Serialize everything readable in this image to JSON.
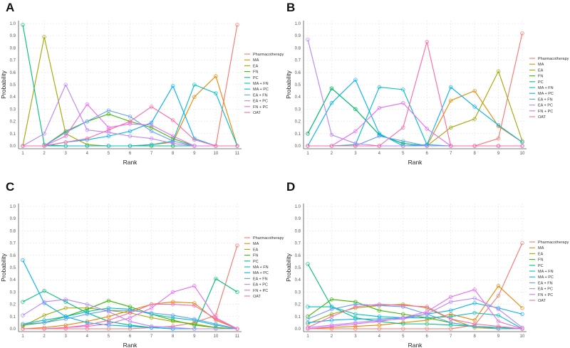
{
  "palette": {
    "Pharmacotherapy": "#F8766D",
    "MA": "#E58700",
    "EA": "#A3A500",
    "FN": "#39B600",
    "PC": "#00BF7D",
    "MA + FN": "#00BFC4",
    "MA + PC": "#00B0F6",
    "EA + FN": "#619CFF",
    "EA + PC": "#B983FF",
    "FN + PC": "#E76BF3",
    "OAT": "#FF67A4"
  },
  "chart_data": [
    {
      "panel": "A",
      "type": "line",
      "xlabel": "Rank",
      "ylabel": "Probability",
      "ylim": [
        0,
        1
      ],
      "yticks": [
        "0.0",
        "0.1",
        "0.2",
        "0.3",
        "0.4",
        "0.5",
        "0.6",
        "0.7",
        "0.8",
        "0.9",
        "1.0"
      ],
      "x": [
        1,
        2,
        3,
        4,
        5,
        6,
        7,
        8,
        9,
        10,
        11
      ],
      "grid": true,
      "legend_position": "right",
      "series": [
        {
          "name": "Pharmacotherapy",
          "values": [
            0,
            0,
            0,
            0,
            0,
            0,
            0,
            0,
            0,
            0,
            0.99
          ]
        },
        {
          "name": "MA",
          "values": [
            0,
            0,
            0,
            0,
            0,
            0,
            0.01,
            0.03,
            0.4,
            0.57,
            0
          ]
        },
        {
          "name": "EA",
          "values": [
            0,
            0.89,
            0.1,
            0.01,
            0,
            0,
            0,
            0,
            0,
            0,
            0
          ]
        },
        {
          "name": "FN",
          "values": [
            0,
            0,
            0.12,
            0.2,
            0.26,
            0.2,
            0.15,
            0.06,
            0,
            0,
            0
          ]
        },
        {
          "name": "PC",
          "values": [
            0.99,
            0.01,
            0,
            0,
            0,
            0,
            0,
            0,
            0,
            0,
            0
          ]
        },
        {
          "name": "MA + FN",
          "values": [
            0,
            0,
            0,
            0,
            0,
            0,
            0.01,
            0.04,
            0.5,
            0.43,
            0
          ]
        },
        {
          "name": "MA + PC",
          "values": [
            0,
            0,
            0.03,
            0.05,
            0.08,
            0.12,
            0.19,
            0.49,
            0.06,
            0,
            0
          ]
        },
        {
          "name": "EA + FN",
          "values": [
            0,
            0,
            0.11,
            0.2,
            0.29,
            0.24,
            0.12,
            0.04,
            0,
            0,
            0
          ]
        },
        {
          "name": "EA + PC",
          "values": [
            0,
            0.1,
            0.5,
            0.13,
            0.11,
            0.08,
            0.06,
            0.02,
            0,
            0,
            0
          ]
        },
        {
          "name": "FN + PC",
          "values": [
            0,
            0,
            0.08,
            0.34,
            0.15,
            0.18,
            0.17,
            0.08,
            0,
            0,
            0
          ]
        },
        {
          "name": "OAT",
          "values": [
            0,
            0,
            0.03,
            0.06,
            0.13,
            0.2,
            0.32,
            0.21,
            0.05,
            0,
            0
          ]
        }
      ]
    },
    {
      "panel": "B",
      "type": "line",
      "xlabel": "Rank",
      "ylabel": "Probability",
      "ylim": [
        0,
        1
      ],
      "yticks": [
        "0.0",
        "0.1",
        "0.2",
        "0.3",
        "0.4",
        "0.5",
        "0.6",
        "0.7",
        "0.8",
        "0.9",
        "1.0"
      ],
      "x": [
        1,
        2,
        3,
        4,
        5,
        6,
        7,
        8,
        9,
        10
      ],
      "grid": true,
      "legend_position": "right",
      "series": [
        {
          "name": "Pharmacotherapy",
          "values": [
            0,
            0,
            0,
            0,
            0,
            0,
            0,
            0,
            0.06,
            0.92
          ]
        },
        {
          "name": "MA",
          "values": [
            0,
            0,
            0,
            0,
            0,
            0,
            0.37,
            0.45,
            0.16,
            0.03
          ]
        },
        {
          "name": "EA",
          "values": [
            0,
            0,
            0,
            0,
            0,
            0,
            0.15,
            0.22,
            0.61,
            0.04
          ]
        },
        {
          "name": "FN",
          "values": [
            0.1,
            0.47,
            0.3,
            0.09,
            0.02,
            0,
            0,
            0,
            0,
            0
          ]
        },
        {
          "name": "PC",
          "values": [
            0.1,
            0.47,
            0.3,
            0.09,
            0.02,
            0,
            0,
            0,
            0,
            0
          ]
        },
        {
          "name": "MA + FN",
          "values": [
            0,
            0,
            0.01,
            0.48,
            0.46,
            0.01,
            0,
            0,
            0,
            0
          ]
        },
        {
          "name": "MA + PC",
          "values": [
            0,
            0.35,
            0.54,
            0.1,
            0,
            0.01,
            0.48,
            0.32,
            0.17,
            0.03
          ]
        },
        {
          "name": "EA + FN",
          "values": [
            0,
            0,
            0,
            0.08,
            0.04,
            0,
            0,
            0,
            0,
            0
          ]
        },
        {
          "name": "EA + PC",
          "values": [
            0.87,
            0.09,
            0.02,
            0,
            0,
            0,
            0,
            0,
            0,
            0
          ]
        },
        {
          "name": "FN + PC",
          "values": [
            0,
            0,
            0.12,
            0.31,
            0.35,
            0.14,
            0,
            0,
            0,
            0
          ]
        },
        {
          "name": "OAT",
          "values": [
            0,
            0,
            0,
            0,
            0.15,
            0.85,
            0,
            0,
            0,
            0
          ]
        }
      ]
    },
    {
      "panel": "C",
      "type": "line",
      "xlabel": "Rank",
      "ylabel": "Probability",
      "ylim": [
        0,
        1
      ],
      "yticks": [
        "0.0",
        "0.1",
        "0.2",
        "0.3",
        "0.4",
        "0.5",
        "0.6",
        "0.7",
        "0.8",
        "0.9",
        "1.0"
      ],
      "x": [
        1,
        2,
        3,
        4,
        5,
        6,
        7,
        8,
        9,
        10,
        11
      ],
      "grid": true,
      "legend_position": "right",
      "series": [
        {
          "name": "Pharmacotherapy",
          "values": [
            0,
            0,
            0,
            0,
            0,
            0,
            0.01,
            0.02,
            0.05,
            0.11,
            0.68
          ]
        },
        {
          "name": "MA",
          "values": [
            0,
            0.01,
            0.03,
            0.06,
            0.1,
            0.15,
            0.2,
            0.22,
            0.21,
            0.07,
            0
          ]
        },
        {
          "name": "EA",
          "values": [
            0.02,
            0.11,
            0.17,
            0.17,
            0.15,
            0.13,
            0.09,
            0.06,
            0.04,
            0.01,
            0
          ]
        },
        {
          "name": "FN",
          "values": [
            0.03,
            0.05,
            0.1,
            0.16,
            0.23,
            0.18,
            0.12,
            0.07,
            0.03,
            0.01,
            0
          ]
        },
        {
          "name": "PC",
          "values": [
            0.22,
            0.31,
            0.22,
            0.13,
            0.06,
            0.03,
            0.01,
            0,
            0,
            0.41,
            0.3
          ]
        },
        {
          "name": "MA + FN",
          "values": [
            0.04,
            0.07,
            0.1,
            0.14,
            0.17,
            0.16,
            0.12,
            0.09,
            0.07,
            0.03,
            0
          ]
        },
        {
          "name": "MA + PC",
          "values": [
            0.56,
            0.21,
            0.1,
            0.05,
            0.03,
            0.02,
            0.01,
            0,
            0,
            0,
            0
          ]
        },
        {
          "name": "EA + FN",
          "values": [
            0.04,
            0.05,
            0.08,
            0.12,
            0.15,
            0.15,
            0.13,
            0.11,
            0.08,
            0.04,
            0
          ]
        },
        {
          "name": "EA + PC",
          "values": [
            0.11,
            0.22,
            0.24,
            0.2,
            0.14,
            0.06,
            0.02,
            0.01,
            0,
            0,
            0
          ]
        },
        {
          "name": "FN + PC",
          "values": [
            0,
            0,
            0.01,
            0.02,
            0.04,
            0.09,
            0.17,
            0.3,
            0.35,
            0.09,
            0
          ]
        },
        {
          "name": "OAT",
          "values": [
            0,
            0,
            0.01,
            0.03,
            0.07,
            0.13,
            0.2,
            0.2,
            0.19,
            0.08,
            0
          ]
        }
      ]
    },
    {
      "panel": "D",
      "type": "line",
      "xlabel": "Rank",
      "ylabel": "Probability",
      "ylim": [
        0,
        1
      ],
      "yticks": [
        "0.0",
        "0.1",
        "0.2",
        "0.3",
        "0.4",
        "0.5",
        "0.6",
        "0.7",
        "0.8",
        "0.9",
        "1.0"
      ],
      "x": [
        1,
        2,
        3,
        4,
        5,
        6,
        7,
        8,
        9,
        10
      ],
      "grid": true,
      "legend_position": "right",
      "series": [
        {
          "name": "Pharmacotherapy",
          "values": [
            0,
            0,
            0,
            0,
            0,
            0,
            0,
            0.03,
            0.27,
            0.7
          ]
        },
        {
          "name": "MA",
          "values": [
            0,
            0.01,
            0.02,
            0.03,
            0.05,
            0.07,
            0.12,
            0.07,
            0.35,
            0.17
          ]
        },
        {
          "name": "EA",
          "values": [
            0.04,
            0.12,
            0.17,
            0.19,
            0.2,
            0.17,
            0.08,
            0.01,
            0,
            0
          ]
        },
        {
          "name": "FN",
          "values": [
            0.1,
            0.24,
            0.22,
            0.15,
            0.12,
            0.09,
            0.05,
            0.02,
            0.01,
            0
          ]
        },
        {
          "name": "PC",
          "values": [
            0.53,
            0.18,
            0.09,
            0.06,
            0.04,
            0.04,
            0.03,
            0.02,
            0.01,
            0
          ]
        },
        {
          "name": "MA + FN",
          "values": [
            0.18,
            0.18,
            0.12,
            0.1,
            0.09,
            0.09,
            0.1,
            0.13,
            0.11,
            0
          ]
        },
        {
          "name": "MA + PC",
          "values": [
            0.05,
            0.07,
            0.08,
            0.08,
            0.09,
            0.12,
            0.15,
            0.21,
            0.17,
            0.12
          ]
        },
        {
          "name": "EA + FN",
          "values": [
            0.08,
            0.16,
            0.2,
            0.19,
            0.18,
            0.12,
            0.05,
            0.02,
            0,
            0
          ]
        },
        {
          "name": "EA + PC",
          "values": [
            0.01,
            0.03,
            0.05,
            0.07,
            0.08,
            0.12,
            0.22,
            0.25,
            0.16,
            0.01
          ]
        },
        {
          "name": "FN + PC",
          "values": [
            0,
            0.02,
            0.04,
            0.06,
            0.09,
            0.14,
            0.26,
            0.32,
            0.06,
            0
          ]
        },
        {
          "name": "OAT",
          "values": [
            0.01,
            0.1,
            0.18,
            0.2,
            0.19,
            0.18,
            0.08,
            0.04,
            0.02,
            0
          ]
        }
      ]
    }
  ]
}
